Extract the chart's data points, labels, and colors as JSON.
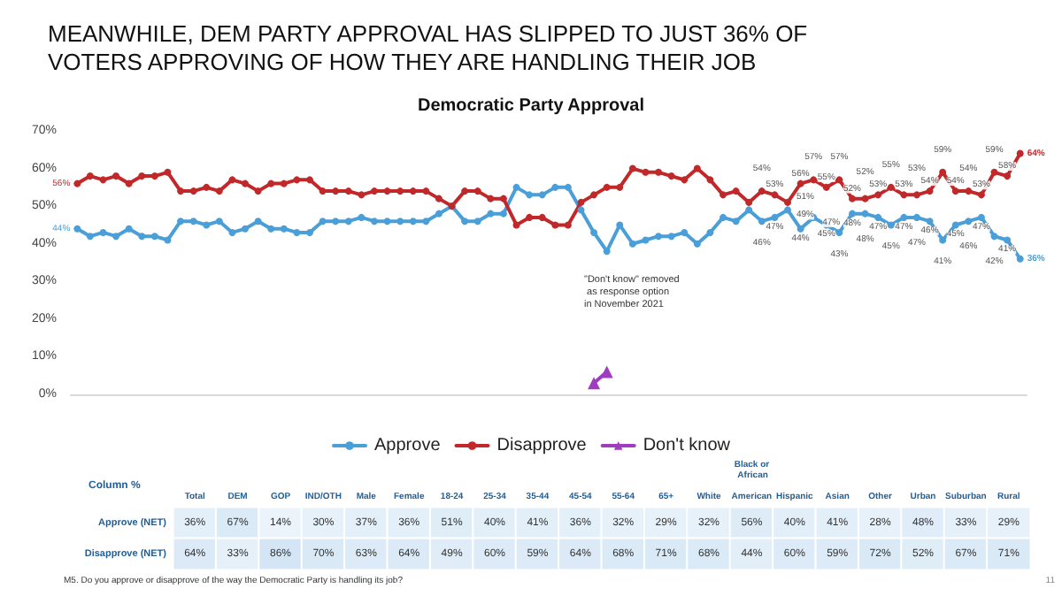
{
  "chart_data": [
    {
      "type": "line",
      "title": "MEANWHILE, DEM PARTY APPROVAL HAS SLIPPED TO JUST 36% OF VOTERS APPROVING OF HOW THEY ARE HANDLING THEIR JOB",
      "subtitle": "Democratic Party Approval",
      "categories": [
        null,
        null,
        null,
        null,
        null,
        null,
        null,
        null,
        null,
        null,
        null,
        null,
        null,
        null,
        null,
        null,
        null,
        null,
        null,
        null,
        null,
        null,
        null,
        null,
        null,
        null,
        null,
        null,
        null,
        null,
        null,
        null,
        null,
        null,
        null,
        null,
        null,
        null,
        null,
        null,
        null,
        null,
        null,
        null,
        null,
        null,
        null,
        null,
        null,
        null,
        null,
        null,
        null,
        null,
        null,
        null,
        null,
        null,
        null,
        null,
        null,
        null,
        null,
        null,
        null,
        null,
        null,
        null,
        null,
        null,
        null,
        null,
        null,
        null
      ],
      "series": [
        {
          "name": "Approve",
          "color": "#4a9fd8",
          "values": [
            44,
            42,
            43,
            42,
            44,
            42,
            42,
            41,
            46,
            46,
            45,
            46,
            43,
            44,
            46,
            44,
            44,
            43,
            43,
            46,
            46,
            46,
            47,
            46,
            46,
            46,
            46,
            46,
            48,
            50,
            46,
            46,
            48,
            48,
            55,
            53,
            53,
            55,
            55,
            49,
            43,
            38,
            45,
            40,
            41,
            42,
            42,
            43,
            40,
            43,
            47,
            46,
            49,
            46,
            47,
            49,
            44,
            47,
            45,
            43,
            48,
            48,
            47,
            45,
            47,
            47,
            46,
            41,
            45,
            46,
            47,
            42,
            41,
            36
          ],
          "value_labels": [
            "44%",
            null,
            null,
            null,
            null,
            null,
            null,
            null,
            null,
            null,
            null,
            null,
            null,
            null,
            null,
            null,
            null,
            null,
            null,
            null,
            null,
            null,
            null,
            null,
            null,
            null,
            null,
            null,
            null,
            null,
            null,
            null,
            null,
            null,
            null,
            null,
            null,
            null,
            null,
            null,
            null,
            null,
            null,
            null,
            null,
            null,
            null,
            null,
            null,
            null,
            null,
            null,
            null,
            "46%",
            "47%",
            "49%",
            "44%",
            "47%",
            "45%",
            "43%",
            "48%",
            "48%",
            "47%",
            "45%",
            "47%",
            "47%",
            "46%",
            "41%",
            "45%",
            "46%",
            "47%",
            "42%",
            "41%",
            "36%"
          ]
        },
        {
          "name": "Disapprove",
          "color": "#c0282a",
          "values": [
            56,
            58,
            57,
            58,
            56,
            58,
            58,
            59,
            54,
            54,
            55,
            54,
            57,
            56,
            54,
            56,
            56,
            57,
            57,
            54,
            54,
            54,
            53,
            54,
            54,
            54,
            54,
            54,
            52,
            50,
            54,
            54,
            52,
            52,
            45,
            47,
            47,
            45,
            45,
            51,
            53,
            55,
            55,
            60,
            59,
            59,
            58,
            57,
            60,
            57,
            53,
            54,
            51,
            54,
            53,
            51,
            56,
            57,
            55,
            57,
            52,
            52,
            53,
            55,
            53,
            53,
            54,
            59,
            54,
            54,
            53,
            59,
            58,
            64
          ],
          "value_labels": [
            "56%",
            null,
            null,
            null,
            null,
            null,
            null,
            null,
            null,
            null,
            null,
            null,
            null,
            null,
            null,
            null,
            null,
            null,
            null,
            null,
            null,
            null,
            null,
            null,
            null,
            null,
            null,
            null,
            null,
            null,
            null,
            null,
            null,
            null,
            null,
            null,
            null,
            null,
            null,
            null,
            null,
            null,
            null,
            null,
            null,
            null,
            null,
            null,
            null,
            null,
            null,
            null,
            null,
            "54%",
            "53%",
            "51%",
            "56%",
            "57%",
            "55%",
            "57%",
            "52%",
            "52%",
            "53%",
            "55%",
            "53%",
            "53%",
            "54%",
            "59%",
            "54%",
            "54%",
            "53%",
            "59%",
            "58%",
            "64%"
          ]
        },
        {
          "name": "Don't know",
          "color": "#a03cc0",
          "marker": "triangle",
          "values": [
            null,
            null,
            null,
            null,
            null,
            null,
            null,
            null,
            null,
            null,
            null,
            null,
            null,
            null,
            null,
            null,
            null,
            null,
            null,
            null,
            null,
            null,
            null,
            null,
            null,
            null,
            null,
            null,
            null,
            null,
            null,
            null,
            null,
            null,
            null,
            null,
            null,
            null,
            null,
            null,
            3,
            6,
            null,
            null,
            null,
            null,
            null,
            null,
            null,
            null,
            null,
            null,
            null,
            null,
            null,
            null,
            null,
            null,
            null,
            null,
            null,
            null,
            null,
            null,
            null,
            null,
            null,
            null,
            null,
            null,
            null,
            null,
            null,
            null
          ]
        }
      ],
      "ylim": [
        0,
        70
      ],
      "yticks": [
        {
          "value": 0,
          "label": "0%"
        },
        {
          "value": 10,
          "label": "10%"
        },
        {
          "value": 20,
          "label": "20%"
        },
        {
          "value": 30,
          "label": "30%"
        },
        {
          "value": 40,
          "label": "40%"
        },
        {
          "value": 50,
          "label": "50%"
        },
        {
          "value": 60,
          "label": "60%"
        },
        {
          "value": 70,
          "label": "70%"
        }
      ],
      "marker": "circle",
      "line_style": "solid",
      "legend": "bottom",
      "annotations": [
        "\"Don't know\" removed as response option in November 2021"
      ]
    },
    {
      "type": "heatmap",
      "ylabel": "Column %",
      "categories": [
        "Total",
        "DEM",
        "GOP",
        "IND/OTH",
        "Male",
        "Female",
        "18-24",
        "25-34",
        "35-44",
        "45-54",
        "55-64",
        "65+",
        "White",
        "Black or African American",
        "Hispanic",
        "Asian",
        "Other",
        "Urban",
        "Suburban",
        "Rural"
      ],
      "y_categories": [
        "Approve (NET)",
        "Disapprove (NET)"
      ],
      "cells": [
        [
          36,
          67,
          14,
          30,
          37,
          36,
          51,
          40,
          41,
          36,
          32,
          29,
          32,
          56,
          40,
          41,
          28,
          48,
          33,
          29
        ],
        [
          64,
          33,
          86,
          70,
          63,
          64,
          49,
          60,
          59,
          64,
          68,
          71,
          68,
          44,
          60,
          59,
          72,
          52,
          67,
          71
        ]
      ],
      "cell_labels": [
        [
          "36%",
          "67%",
          "14%",
          "30%",
          "37%",
          "36%",
          "51%",
          "40%",
          "41%",
          "36%",
          "32%",
          "29%",
          "32%",
          "56%",
          "40%",
          "41%",
          "28%",
          "48%",
          "33%",
          "29%"
        ],
        [
          "64%",
          "33%",
          "86%",
          "70%",
          "63%",
          "64%",
          "49%",
          "60%",
          "59%",
          "64%",
          "68%",
          "71%",
          "68%",
          "44%",
          "60%",
          "59%",
          "72%",
          "52%",
          "67%",
          "71%"
        ]
      ],
      "annotations": [
        "M5. Do you approve or disapprove of the way the Democratic Party is handling its job?",
        "11"
      ]
    }
  ]
}
